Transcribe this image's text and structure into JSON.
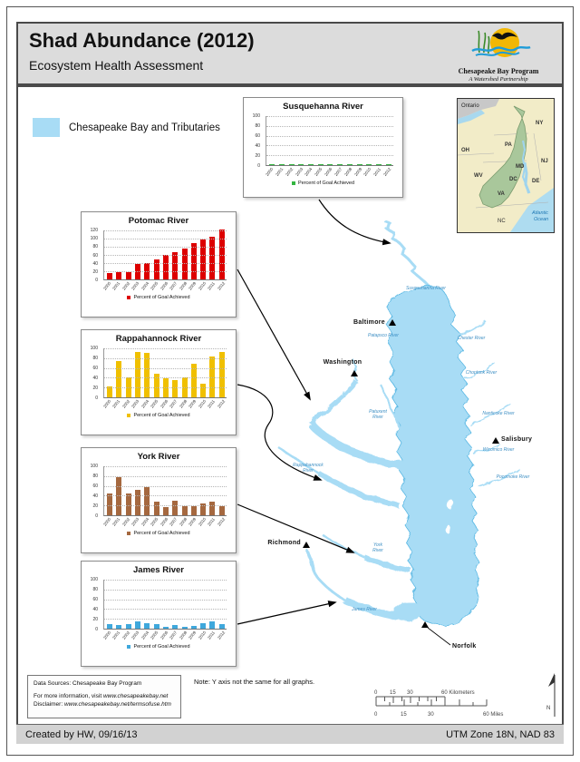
{
  "header": {
    "title": "Shad Abundance (2012)",
    "subtitle": "Ecosystem Health Assessment",
    "logo_name": "Chesapeake Bay Program",
    "logo_tagline": "A Watershed Partnership"
  },
  "legend": {
    "label": "Chesapeake Bay and Tributaries",
    "water_color": "#A8DCF5"
  },
  "inset": {
    "ontario": "Ontario",
    "oh": "OH",
    "ny": "NY",
    "pa": "PA",
    "md": "MD",
    "nj": "NJ",
    "wv": "WV",
    "dc": "DC",
    "de": "DE",
    "va": "VA",
    "nc": "NC",
    "atlantic_1": "Atlantic",
    "atlantic_2": "Ocean"
  },
  "map": {
    "cities": [
      "Baltimore",
      "Washington",
      "Salisbury",
      "Richmond",
      "Norfolk"
    ],
    "rivers": [
      "Susquehanna River",
      "Patapsco River",
      "Chester River",
      "Choptank River",
      "Patuxent River",
      "Nanticoke River",
      "Wicomico River",
      "Pocomoke River",
      "Rappahannock River",
      "York River",
      "James River"
    ]
  },
  "chart_data": [
    {
      "type": "bar",
      "title": "Susquehanna River",
      "categories": [
        "2000",
        "2001",
        "2002",
        "2003",
        "2004",
        "2005",
        "2006",
        "2007",
        "2008",
        "2009",
        "2010",
        "2011",
        "2012"
      ],
      "values": [
        2,
        2,
        2,
        2,
        2,
        2,
        2,
        2,
        2,
        2,
        2,
        2,
        2
      ],
      "color": "#33B540",
      "ylim": [
        0,
        100
      ],
      "yticks": [
        0,
        20,
        40,
        60,
        80,
        100
      ],
      "xlabel": "",
      "ylabel": "",
      "legend_label": "Percent of Goal Achieved",
      "grid": true
    },
    {
      "type": "bar",
      "title": "Potomac River",
      "categories": [
        "2000",
        "2001",
        "2002",
        "2003",
        "2004",
        "2005",
        "2006",
        "2007",
        "2008",
        "2009",
        "2010",
        "2011",
        "2012"
      ],
      "values": [
        15,
        18,
        18,
        37,
        40,
        48,
        60,
        67,
        75,
        90,
        97,
        105,
        122
      ],
      "color": "#DD0000",
      "ylim": [
        0,
        120
      ],
      "yticks": [
        0,
        20,
        40,
        60,
        80,
        100,
        120
      ],
      "xlabel": "",
      "ylabel": "",
      "legend_label": "Percent of Goal Achieved",
      "grid": true
    },
    {
      "type": "bar",
      "title": "Rappahannock River",
      "categories": [
        "2000",
        "2001",
        "2002",
        "2003",
        "2004",
        "2005",
        "2006",
        "2007",
        "2008",
        "2009",
        "2010",
        "2011",
        "2012"
      ],
      "values": [
        23,
        75,
        40,
        92,
        90,
        48,
        39,
        35,
        41,
        69,
        27,
        83,
        93
      ],
      "color": "#F0C000",
      "ylim": [
        0,
        100
      ],
      "yticks": [
        0,
        20,
        40,
        60,
        80,
        100
      ],
      "xlabel": "",
      "ylabel": "",
      "legend_label": "Percent of Goal Achieved",
      "grid": true
    },
    {
      "type": "bar",
      "title": "York River",
      "categories": [
        "2000",
        "2001",
        "2002",
        "2003",
        "2004",
        "2005",
        "2006",
        "2007",
        "2008",
        "2009",
        "2010",
        "2011",
        "2012"
      ],
      "values": [
        45,
        77,
        45,
        52,
        57,
        28,
        17,
        30,
        19,
        18,
        25,
        27,
        19
      ],
      "color": "#A5683F",
      "ylim": [
        0,
        100
      ],
      "yticks": [
        0,
        20,
        40,
        60,
        80,
        100
      ],
      "xlabel": "",
      "ylabel": "",
      "legend_label": "Percent of Goal Achieved",
      "grid": true
    },
    {
      "type": "bar",
      "title": "James River",
      "categories": [
        "2000",
        "2001",
        "2002",
        "2003",
        "2004",
        "2005",
        "2006",
        "2007",
        "2008",
        "2009",
        "2010",
        "2011",
        "2012"
      ],
      "values": [
        10,
        8,
        9,
        14,
        11,
        10,
        3,
        7,
        3,
        5,
        11,
        14,
        9
      ],
      "color": "#3FA8DC",
      "ylim": [
        0,
        100
      ],
      "yticks": [
        0,
        20,
        40,
        60,
        80,
        100
      ],
      "xlabel": "",
      "ylabel": "",
      "legend_label": "Percent of Goal Achieved",
      "grid": true
    }
  ],
  "note": "Note: Y axis not the same for all graphs.",
  "sources": {
    "line1": "Data Sources:  Chesapeake Bay Program",
    "line2_prefix": "For more information, visit ",
    "line2_url": "www.chesapeakebay.net",
    "line3_prefix": "Disclaimer: ",
    "line3_url": "www.chesapeakebay.net/termsofuse.htm"
  },
  "scalebar": {
    "km_0": "0",
    "km_15": "15",
    "km_30": "30",
    "km_60": "60 Kilometers",
    "mi_0": "0",
    "mi_15": "15",
    "mi_30": "30",
    "mi_60": "60 Miles"
  },
  "north": "N",
  "footer": {
    "left": "Created by HW, 09/16/13",
    "right": "UTM Zone 18N, NAD 83"
  }
}
